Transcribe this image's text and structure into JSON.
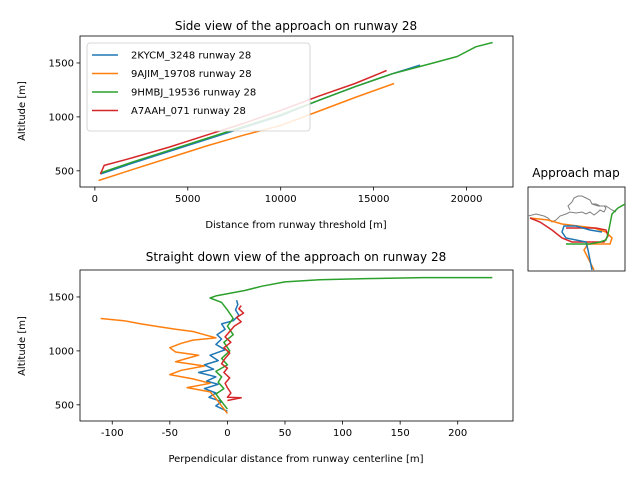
{
  "colors": {
    "2KYCM_3248": "#1f77b4",
    "9AJIM_19708": "#ff7f0e",
    "9HMBJ_19536": "#2ca02c",
    "A7AAH_071": "#d62728",
    "map_shore": "#7f7f7f"
  },
  "chart_data": [
    {
      "type": "line",
      "title": "Side view of the approach on runway 28",
      "xlabel": "Distance from runway threshold [m]",
      "ylabel": "Altitude [m]",
      "xlim": [
        -800,
        22500
      ],
      "ylim": [
        350,
        1750
      ],
      "xticks": [
        0,
        5000,
        10000,
        15000,
        20000
      ],
      "yticks": [
        500,
        1000,
        1500
      ],
      "legend": "top-left",
      "series": [
        {
          "key": "2KYCM_3248",
          "name": "2KYCM_3248 runway 28",
          "x": [
            300,
            2000,
            4000,
            6000,
            8000,
            10000,
            12000,
            14000,
            16000,
            17500
          ],
          "y": [
            470,
            570,
            680,
            790,
            900,
            1010,
            1150,
            1280,
            1400,
            1480
          ]
        },
        {
          "key": "9AJIM_19708",
          "name": "9AJIM_19708 runway 28",
          "x": [
            200,
            2000,
            4000,
            6000,
            8000,
            10000,
            12000,
            14000,
            16100
          ],
          "y": [
            410,
            510,
            620,
            730,
            830,
            920,
            1050,
            1180,
            1310
          ]
        },
        {
          "key": "9HMBJ_19536",
          "name": "9HMBJ_19536 runway 28",
          "x": [
            300,
            2000,
            4000,
            6000,
            8000,
            10000,
            12000,
            14000,
            16000,
            18000,
            19500,
            20500,
            21400
          ],
          "y": [
            480,
            580,
            690,
            800,
            910,
            1020,
            1150,
            1280,
            1400,
            1490,
            1560,
            1650,
            1690
          ]
        },
        {
          "key": "A7AAH_071",
          "name": "A7AAH_071 runway 28",
          "x": [
            300,
            500,
            2000,
            4000,
            6000,
            8000,
            10000,
            12000,
            14000,
            15700
          ],
          "y": [
            470,
            550,
            620,
            720,
            830,
            940,
            1060,
            1190,
            1310,
            1430
          ]
        }
      ]
    },
    {
      "type": "line",
      "title": "Straight down view of the approach on runway 28",
      "xlabel": "Perpendicular distance from runway centerline [m]",
      "ylabel": "Altitude [m]",
      "xlim": [
        -128,
        248
      ],
      "ylim": [
        350,
        1750
      ],
      "xticks": [
        -100,
        -50,
        0,
        50,
        100,
        150,
        200
      ],
      "yticks": [
        500,
        1000,
        1500
      ],
      "series": [
        {
          "key": "2KYCM_3248",
          "x": [
            8,
            9,
            7,
            10,
            5,
            -5,
            -2,
            -9,
            -5,
            -10,
            -2,
            -15,
            -8,
            -20,
            -12,
            -25,
            -10,
            -18,
            -8,
            -20,
            -10,
            -16,
            -5,
            -10,
            0
          ],
          "y": [
            1470,
            1430,
            1380,
            1330,
            1280,
            1250,
            1200,
            1150,
            1110,
            1060,
            1010,
            960,
            910,
            870,
            830,
            800,
            760,
            720,
            690,
            650,
            610,
            570,
            530,
            490,
            440
          ]
        },
        {
          "key": "9AJIM_19708",
          "x": [
            -110,
            -90,
            -75,
            -60,
            -45,
            -30,
            -20,
            -10,
            -30,
            -40,
            -50,
            -45,
            -25,
            -35,
            -45,
            -20,
            -40,
            -50,
            -30,
            -15,
            -35,
            -15,
            -10,
            -5,
            0
          ],
          "y": [
            1300,
            1280,
            1250,
            1225,
            1200,
            1180,
            1150,
            1120,
            1100,
            1070,
            1030,
            990,
            960,
            930,
            900,
            860,
            820,
            780,
            740,
            700,
            660,
            620,
            560,
            490,
            420
          ]
        },
        {
          "key": "9HMBJ_19536",
          "x": [
            230,
            170,
            120,
            80,
            50,
            30,
            15,
            0,
            -10,
            -15,
            -5,
            0,
            5,
            0,
            5,
            -3,
            2,
            -5,
            0,
            -10,
            -5,
            -8,
            -3,
            -10,
            -5,
            0
          ],
          "y": [
            1680,
            1680,
            1670,
            1660,
            1640,
            1600,
            1560,
            1530,
            1510,
            1490,
            1450,
            1380,
            1300,
            1230,
            1150,
            1080,
            1000,
            930,
            870,
            810,
            760,
            710,
            650,
            600,
            530,
            460
          ]
        },
        {
          "key": "A7AAH_071",
          "x": [
            12,
            10,
            14,
            8,
            12,
            6,
            2,
            -2,
            3,
            -3,
            2,
            -2,
            -5,
            0,
            -3,
            2,
            -2,
            0,
            3,
            0,
            12,
            0
          ],
          "y": [
            1420,
            1390,
            1350,
            1310,
            1270,
            1230,
            1180,
            1130,
            1080,
            1030,
            980,
            930,
            880,
            840,
            800,
            750,
            700,
            660,
            610,
            570,
            565,
            540
          ]
        }
      ]
    },
    {
      "type": "line",
      "title": "Approach map"
    }
  ]
}
